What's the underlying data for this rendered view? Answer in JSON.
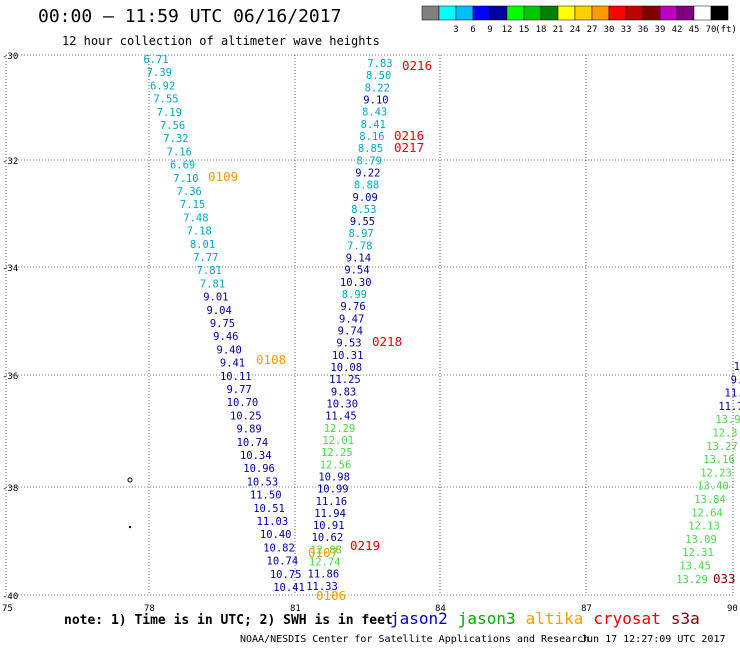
{
  "header": {
    "title": "00:00 — 11:59 UTC 06/16/2017",
    "subtitle": "12 hour collection of altimeter wave heights"
  },
  "colorbar": {
    "unit": "(ft)",
    "swatches": [
      {
        "color": "#808080",
        "label": ""
      },
      {
        "color": "#00ffff",
        "label": "3"
      },
      {
        "color": "#00bfff",
        "label": "6"
      },
      {
        "color": "#0000ff",
        "label": "9"
      },
      {
        "color": "#0000a0",
        "label": "12"
      },
      {
        "color": "#00ff00",
        "label": "15"
      },
      {
        "color": "#00c800",
        "label": "18"
      },
      {
        "color": "#008000",
        "label": "21"
      },
      {
        "color": "#ffff00",
        "label": "24"
      },
      {
        "color": "#ffd000",
        "label": "27"
      },
      {
        "color": "#ff9900",
        "label": "30"
      },
      {
        "color": "#ff0000",
        "label": "33"
      },
      {
        "color": "#c00000",
        "label": "36"
      },
      {
        "color": "#800000",
        "label": "39"
      },
      {
        "color": "#c000c0",
        "label": "42"
      },
      {
        "color": "#800080",
        "label": "45"
      },
      {
        "color": "#ffffff",
        "label": "70"
      },
      {
        "color": "#000000",
        "label": ""
      }
    ]
  },
  "axes": {
    "lat_labels": [
      "-30",
      "-32",
      "-34",
      "-36",
      "-38",
      "-40"
    ],
    "lon_labels": [
      "75",
      "78",
      "81",
      "84",
      "87",
      "90"
    ]
  },
  "colors": {
    "lightblue": "#00a8c8",
    "darkblue": "#0000a0",
    "green": "#44dd44",
    "orange": "#ff9900",
    "red": "#ee0000",
    "darkred": "#800000"
  },
  "tracks": [
    {
      "points": [
        {
          "t": "6.71",
          "c": "lightblue"
        },
        {
          "t": "7.39",
          "c": "lightblue"
        },
        {
          "t": "6.92",
          "c": "lightblue"
        },
        {
          "t": "7.55",
          "c": "lightblue"
        },
        {
          "t": "7.19",
          "c": "lightblue"
        },
        {
          "t": "7.56",
          "c": "lightblue"
        },
        {
          "t": "7.32",
          "c": "lightblue"
        },
        {
          "t": "7.16",
          "c": "lightblue"
        },
        {
          "t": "6.69",
          "c": "lightblue"
        },
        {
          "t": "7.10",
          "c": "lightblue"
        },
        {
          "t": "7.36",
          "c": "lightblue"
        },
        {
          "t": "7.15",
          "c": "lightblue"
        },
        {
          "t": "7.48",
          "c": "lightblue"
        },
        {
          "t": "7.18",
          "c": "lightblue"
        },
        {
          "t": "8.01",
          "c": "lightblue"
        },
        {
          "t": "7.77",
          "c": "lightblue"
        },
        {
          "t": "7.81",
          "c": "lightblue"
        },
        {
          "t": "7.81",
          "c": "lightblue"
        },
        {
          "t": "9.01",
          "c": "darkblue"
        },
        {
          "t": "9.04",
          "c": "darkblue"
        },
        {
          "t": "9.75",
          "c": "darkblue"
        },
        {
          "t": "9.46",
          "c": "darkblue"
        },
        {
          "t": "9.40",
          "c": "darkblue"
        },
        {
          "t": "9.41",
          "c": "darkblue"
        },
        {
          "t": "10.11",
          "c": "darkblue"
        },
        {
          "t": "9.77",
          "c": "darkblue"
        },
        {
          "t": "10.70",
          "c": "darkblue"
        },
        {
          "t": "10.25",
          "c": "darkblue"
        },
        {
          "t": "9.89",
          "c": "darkblue"
        },
        {
          "t": "10.74",
          "c": "darkblue"
        },
        {
          "t": "10.34",
          "c": "darkblue"
        },
        {
          "t": "10.96",
          "c": "darkblue"
        },
        {
          "t": "10.53",
          "c": "darkblue"
        },
        {
          "t": "11.50",
          "c": "darkblue"
        },
        {
          "t": "10.51",
          "c": "darkblue"
        },
        {
          "t": "11.03",
          "c": "darkblue"
        },
        {
          "t": "10.40",
          "c": "darkblue"
        },
        {
          "t": "10.82",
          "c": "darkblue"
        },
        {
          "t": "10.74",
          "c": "darkblue"
        },
        {
          "t": "10.75",
          "c": "darkblue"
        },
        {
          "t": "10.41",
          "c": "darkblue"
        }
      ]
    },
    {
      "points": [
        {
          "t": "7.83",
          "c": "lightblue"
        },
        {
          "t": "8.50",
          "c": "lightblue"
        },
        {
          "t": "8.22",
          "c": "lightblue"
        },
        {
          "t": "9.10",
          "c": "darkblue"
        },
        {
          "t": "8.43",
          "c": "lightblue"
        },
        {
          "t": "8.41",
          "c": "lightblue"
        },
        {
          "t": "8.16",
          "c": "lightblue"
        },
        {
          "t": "8.85",
          "c": "lightblue"
        },
        {
          "t": "8.79",
          "c": "lightblue"
        },
        {
          "t": "9.22",
          "c": "darkblue"
        },
        {
          "t": "8.88",
          "c": "lightblue"
        },
        {
          "t": "9.09",
          "c": "darkblue"
        },
        {
          "t": "8.53",
          "c": "lightblue"
        },
        {
          "t": "9.55",
          "c": "darkblue"
        },
        {
          "t": "8.97",
          "c": "lightblue"
        },
        {
          "t": "7.78",
          "c": "lightblue"
        },
        {
          "t": "9.14",
          "c": "darkblue"
        },
        {
          "t": "9.54",
          "c": "darkblue"
        },
        {
          "t": "10.30",
          "c": "darkblue"
        },
        {
          "t": "8.99",
          "c": "lightblue"
        },
        {
          "t": "9.76",
          "c": "darkblue"
        },
        {
          "t": "9.47",
          "c": "darkblue"
        },
        {
          "t": "9.74",
          "c": "darkblue"
        },
        {
          "t": "9.53",
          "c": "darkblue"
        },
        {
          "t": "10.31",
          "c": "darkblue"
        },
        {
          "t": "10.08",
          "c": "darkblue"
        },
        {
          "t": "11.25",
          "c": "darkblue"
        },
        {
          "t": "9.83",
          "c": "darkblue"
        },
        {
          "t": "10.30",
          "c": "darkblue"
        },
        {
          "t": "11.45",
          "c": "darkblue"
        },
        {
          "t": "12.29",
          "c": "green"
        },
        {
          "t": "12.01",
          "c": "green"
        },
        {
          "t": "12.25",
          "c": "green"
        },
        {
          "t": "12.56",
          "c": "green"
        },
        {
          "t": "10.98",
          "c": "darkblue"
        },
        {
          "t": "10.99",
          "c": "darkblue"
        },
        {
          "t": "11.16",
          "c": "darkblue"
        },
        {
          "t": "11.94",
          "c": "darkblue"
        },
        {
          "t": "10.91",
          "c": "darkblue"
        },
        {
          "t": "10.62",
          "c": "darkblue"
        },
        {
          "t": "12.88",
          "c": "green"
        },
        {
          "t": "12.74",
          "c": "green"
        },
        {
          "t": "11.86",
          "c": "darkblue"
        },
        {
          "t": "11.33",
          "c": "darkblue"
        }
      ]
    },
    {
      "points": [
        {
          "t": "10",
          "c": "darkblue"
        },
        {
          "t": "9.",
          "c": "darkblue"
        },
        {
          "t": "11.",
          "c": "darkblue"
        },
        {
          "t": "11.7",
          "c": "darkblue"
        },
        {
          "t": "13.9",
          "c": "green"
        },
        {
          "t": "12.3",
          "c": "green"
        },
        {
          "t": "13.27",
          "c": "green"
        },
        {
          "t": "13.16",
          "c": "green"
        },
        {
          "t": "12.23",
          "c": "green"
        },
        {
          "t": "13.40",
          "c": "green"
        },
        {
          "t": "13.84",
          "c": "green"
        },
        {
          "t": "12.64",
          "c": "green"
        },
        {
          "t": "12.13",
          "c": "green"
        },
        {
          "t": "13.09",
          "c": "green"
        },
        {
          "t": "12.31",
          "c": "green"
        },
        {
          "t": "13.45",
          "c": "green"
        },
        {
          "t": "13.29",
          "c": "green"
        }
      ]
    }
  ],
  "time_labels": [
    {
      "t": "0216",
      "c": "red"
    },
    {
      "t": "0216",
      "c": "red"
    },
    {
      "t": "0217",
      "c": "red"
    },
    {
      "t": "0218",
      "c": "red"
    },
    {
      "t": "0219",
      "c": "red"
    },
    {
      "t": "0109",
      "c": "orange"
    },
    {
      "t": "0108",
      "c": "orange"
    },
    {
      "t": "0107",
      "c": "orange"
    },
    {
      "t": "0106",
      "c": "orange"
    },
    {
      "t": "033",
      "c": "darkred"
    }
  ],
  "note": "note: 1) Time is in UTC; 2) SWH is in feet",
  "satellites": [
    {
      "name": "jason2",
      "color": "#0000cc"
    },
    {
      "name": "jason3",
      "color": "#00aa00"
    },
    {
      "name": "altika",
      "color": "#ff9900"
    },
    {
      "name": "cryosat",
      "color": "#ee0000"
    },
    {
      "name": "s3a",
      "color": "#800000"
    }
  ],
  "footer": {
    "credit": "NOAA/NESDIS Center for Satellite Applications and Research",
    "timestamp": "Jun 17 12:27:09 UTC 2017"
  }
}
